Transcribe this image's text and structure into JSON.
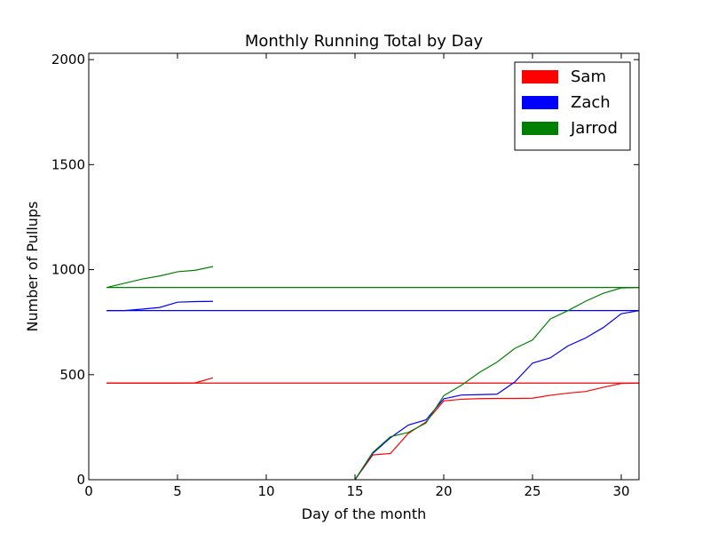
{
  "chart_data": {
    "type": "line",
    "title": "Monthly Running Total by Day",
    "xlabel": "Day of the month",
    "ylabel": "Number of Pullups",
    "xlim": [
      0,
      31
    ],
    "ylim": [
      0,
      2030
    ],
    "xticks": [
      0,
      5,
      10,
      15,
      20,
      25,
      30
    ],
    "yticks": [
      0,
      500,
      1000,
      1500,
      2000
    ],
    "grid": false,
    "legend_position": "top-right",
    "series": [
      {
        "name": "Sam",
        "color": "#ff0000",
        "segments": [
          [
            [
              1,
              460
            ],
            [
              2,
              460
            ],
            [
              3,
              460
            ],
            [
              4,
              460
            ],
            [
              5,
              460
            ],
            [
              6,
              461
            ],
            [
              7,
              485
            ]
          ],
          [
            [
              1,
              460
            ],
            [
              31,
              460
            ]
          ],
          [
            [
              15,
              0
            ],
            [
              16,
              118
            ],
            [
              17,
              125
            ],
            [
              18,
              220
            ],
            [
              19,
              275
            ],
            [
              20,
              375
            ],
            [
              21,
              383
            ],
            [
              22,
              386
            ],
            [
              23,
              387
            ],
            [
              24,
              387
            ],
            [
              25,
              388
            ],
            [
              26,
              402
            ],
            [
              27,
              412
            ],
            [
              28,
              420
            ],
            [
              29,
              440
            ],
            [
              30,
              458
            ],
            [
              31,
              460
            ]
          ]
        ]
      },
      {
        "name": "Zach",
        "color": "#0000ff",
        "segments": [
          [
            [
              1,
              805
            ],
            [
              2,
              805
            ],
            [
              3,
              812
            ],
            [
              4,
              820
            ],
            [
              5,
              845
            ],
            [
              6,
              848
            ],
            [
              7,
              849
            ]
          ],
          [
            [
              1,
              805
            ],
            [
              31,
              805
            ]
          ],
          [
            [
              15,
              0
            ],
            [
              16,
              125
            ],
            [
              17,
              200
            ],
            [
              18,
              260
            ],
            [
              19,
              285
            ],
            [
              20,
              385
            ],
            [
              21,
              403
            ],
            [
              22,
              405
            ],
            [
              23,
              407
            ],
            [
              24,
              465
            ],
            [
              25,
              555
            ],
            [
              26,
              580
            ],
            [
              27,
              637
            ],
            [
              28,
              675
            ],
            [
              29,
              725
            ],
            [
              30,
              790
            ],
            [
              31,
              805
            ]
          ]
        ]
      },
      {
        "name": "Jarrod",
        "color": "#008000",
        "segments": [
          [
            [
              1,
              915
            ],
            [
              2,
              935
            ],
            [
              3,
              955
            ],
            [
              4,
              970
            ],
            [
              5,
              990
            ],
            [
              6,
              997
            ],
            [
              7,
              1015
            ]
          ],
          [
            [
              1,
              915
            ],
            [
              31,
              915
            ]
          ],
          [
            [
              15,
              0
            ],
            [
              16,
              130
            ],
            [
              17,
              205
            ],
            [
              18,
              225
            ],
            [
              19,
              270
            ],
            [
              20,
              400
            ],
            [
              21,
              450
            ],
            [
              22,
              510
            ],
            [
              23,
              560
            ],
            [
              24,
              625
            ],
            [
              25,
              665
            ],
            [
              26,
              765
            ],
            [
              27,
              805
            ],
            [
              28,
              850
            ],
            [
              29,
              888
            ],
            [
              30,
              913
            ],
            [
              31,
              915
            ]
          ]
        ]
      }
    ]
  }
}
